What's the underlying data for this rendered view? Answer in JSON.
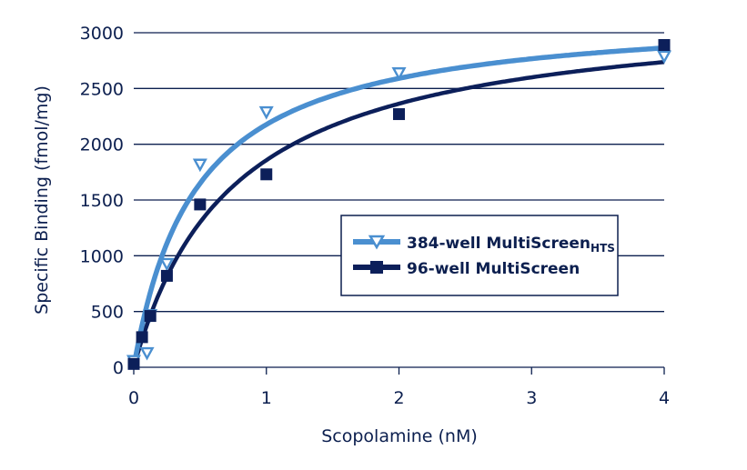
{
  "chart_data": {
    "type": "scatter",
    "title": "",
    "xlabel": "Scopolamine (nM)",
    "ylabel": "Specific Binding (fmol/mg)",
    "xlim": [
      0,
      4
    ],
    "ylim": [
      0,
      3000
    ],
    "x_ticks": [
      0,
      1,
      2,
      3,
      4
    ],
    "x_tick_labels": [
      "0",
      "1",
      "2",
      "3",
      "4"
    ],
    "y_ticks": [
      0,
      500,
      1000,
      1500,
      2000,
      2500,
      3000
    ],
    "y_tick_labels": [
      "0",
      "500",
      "1000",
      "1500",
      "2000",
      "2500",
      "3000"
    ],
    "grid": {
      "horizontal": true,
      "vertical": false
    },
    "legend_position": "center-right inside plot",
    "series": [
      {
        "name": "384-well MultiScreen",
        "name_subscript": "HTS",
        "marker": "triangle-down-open",
        "color": "#4a8fd0",
        "x": [
          0,
          0.1,
          0.125,
          0.25,
          0.5,
          1,
          2,
          4
        ],
        "y": [
          60,
          130,
          470,
          930,
          1820,
          2290,
          2640,
          2790
        ],
        "fit": {
          "model": "one-site saturation binding",
          "Bmax": 3200,
          "Kd": 0.47
        }
      },
      {
        "name": "96-well MultiScreen",
        "name_subscript": "",
        "marker": "square-filled",
        "color": "#0c1f5a",
        "x": [
          0,
          0.0625,
          0.125,
          0.25,
          0.5,
          1,
          2,
          4
        ],
        "y": [
          30,
          270,
          460,
          820,
          1460,
          1730,
          2270,
          2890
        ],
        "fit": {
          "model": "one-site saturation binding",
          "Bmax": 3250,
          "Kd": 0.75
        }
      }
    ]
  }
}
